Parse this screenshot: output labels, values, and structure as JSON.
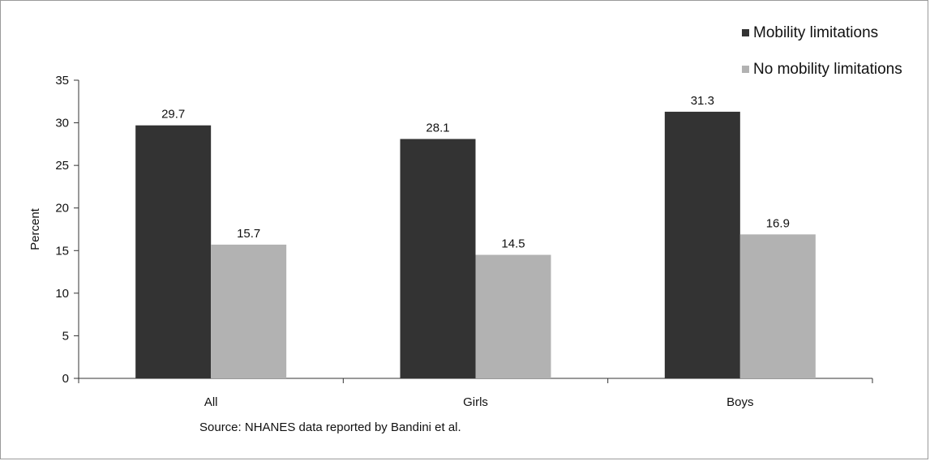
{
  "chart_data": {
    "type": "bar",
    "categories": [
      "All",
      "Girls",
      "Boys"
    ],
    "series": [
      {
        "name": "Mobility limitations",
        "values": [
          29.7,
          28.1,
          31.3
        ],
        "color": "#333333"
      },
      {
        "name": "No mobility limitations",
        "values": [
          15.7,
          14.5,
          16.9
        ],
        "color": "#b2b2b2"
      }
    ],
    "ylabel": "Percent",
    "xlabel": "",
    "ylim": [
      0,
      35
    ],
    "yticks": [
      0,
      5,
      10,
      15,
      20,
      25,
      30,
      35
    ],
    "data_labels": true,
    "grid": false,
    "legend_position": "top-right",
    "source_note": "Source: NHANES data reported by Bandini et al."
  }
}
